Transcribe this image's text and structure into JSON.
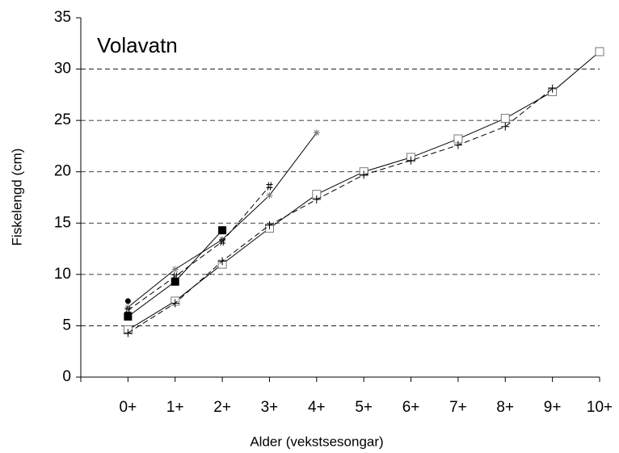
{
  "chart_data": {
    "type": "line",
    "title": "Volavatn",
    "x_label": "Alder (vekstsesongar)",
    "y_label": "Fiskelengd (cm)",
    "x": [
      0,
      1,
      2,
      3,
      4,
      5,
      6,
      7,
      8,
      9,
      10
    ],
    "series": [
      {
        "color": "#000000",
        "marker": "open-square",
        "dash": "solid",
        "values": [
          4.6,
          7.4,
          11.0,
          14.5,
          17.8,
          20.0,
          21.4,
          23.2,
          25.2,
          27.8,
          31.7
        ]
      },
      {
        "color": "#000000",
        "marker": "plus",
        "dash": "dashed",
        "values": [
          4.3,
          7.2,
          11.3,
          14.8,
          17.3,
          19.7,
          21.1,
          22.6,
          24.4,
          28.1,
          null
        ]
      },
      {
        "color": "#000000",
        "marker": "filled-square",
        "dash": "solid",
        "values": [
          5.9,
          9.3,
          14.3,
          null,
          null,
          null,
          null,
          null,
          null,
          null,
          null
        ]
      },
      {
        "color": "#000000",
        "marker": "star",
        "dash": "solid",
        "values": [
          6.8,
          10.5,
          13.4,
          17.7,
          23.8,
          null,
          null,
          null,
          null,
          null,
          null
        ]
      },
      {
        "color": "#000000",
        "marker": "hash",
        "dash": "dashed",
        "values": [
          6.5,
          9.8,
          13.2,
          18.6,
          null,
          null,
          null,
          null,
          null,
          null,
          null
        ]
      },
      {
        "color": "#000000",
        "marker": "filled-circle",
        "dash": "solid",
        "values": [
          7.4,
          null,
          null,
          null,
          null,
          null,
          null,
          null,
          null,
          null,
          null
        ]
      }
    ],
    "xlim": [
      -1,
      10
    ],
    "xticks": [
      {
        "value": 0,
        "label": "0+"
      },
      {
        "value": 1,
        "label": "1+"
      },
      {
        "value": 2,
        "label": "2+"
      },
      {
        "value": 3,
        "label": "3+"
      },
      {
        "value": 4,
        "label": "4+"
      },
      {
        "value": 5,
        "label": "5+"
      },
      {
        "value": 6,
        "label": "6+"
      },
      {
        "value": 7,
        "label": "7+"
      },
      {
        "value": 8,
        "label": "8+"
      },
      {
        "value": 9,
        "label": "9+"
      },
      {
        "value": 10,
        "label": "10+"
      }
    ],
    "ylim": [
      0,
      35
    ],
    "yticks": [
      0,
      5,
      10,
      15,
      20,
      25,
      30,
      35
    ],
    "grid": true
  }
}
